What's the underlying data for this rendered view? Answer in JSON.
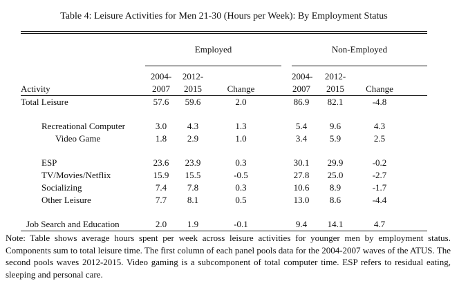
{
  "title": "Table 4: Leisure Activities for Men 21-30 (Hours per Week): By Employment Status",
  "table": {
    "panels": [
      {
        "label": "Employed"
      },
      {
        "label": "Non-Employed"
      }
    ],
    "activity_header": "Activity",
    "period_headers": [
      {
        "line1": "2004-",
        "line2": "2007"
      },
      {
        "line1": "2012-",
        "line2": "2015"
      }
    ],
    "change_header": "Change",
    "rows": [
      {
        "label": "Total Leisure",
        "indent": 0,
        "values": [
          "57.6",
          "59.6",
          "2.0",
          "86.9",
          "82.1",
          "-4.8"
        ]
      },
      {
        "spacer": true
      },
      {
        "label": "Recreational Computer",
        "indent": 2,
        "values": [
          "3.0",
          "4.3",
          "1.3",
          "5.4",
          "9.6",
          "4.3"
        ]
      },
      {
        "label": "Video Game",
        "indent": 3,
        "values": [
          "1.8",
          "2.9",
          "1.0",
          "3.4",
          "5.9",
          "2.5"
        ]
      },
      {
        "spacer": true
      },
      {
        "label": "ESP",
        "indent": 2,
        "values": [
          "23.6",
          "23.9",
          "0.3",
          "30.1",
          "29.9",
          "-0.2"
        ]
      },
      {
        "label": "TV/Movies/Netflix",
        "indent": 2,
        "values": [
          "15.9",
          "15.5",
          "-0.5",
          "27.8",
          "25.0",
          "-2.7"
        ]
      },
      {
        "label": "Socializing",
        "indent": 2,
        "values": [
          "7.4",
          "7.8",
          "0.3",
          "10.6",
          "8.9",
          "-1.7"
        ]
      },
      {
        "label": "Other Leisure",
        "indent": 2,
        "values": [
          "7.7",
          "8.1",
          "0.5",
          "13.0",
          "8.6",
          "-4.4"
        ]
      },
      {
        "spacer": true
      },
      {
        "label": "Job Search and Education",
        "indent": 1,
        "values": [
          "2.0",
          "1.9",
          "-0.1",
          "9.4",
          "14.1",
          "4.7"
        ]
      }
    ]
  },
  "note": "Note: Table shows average hours spent per week across leisure activities for younger men by employment status. Components sum to total leisure time. The first column of each panel pools data for the 2004-2007 waves of the ATUS. The second pools waves 2012-2015. Video gaming is a subcomponent of total computer time. ESP refers to residual eating, sleeping and personal care."
}
